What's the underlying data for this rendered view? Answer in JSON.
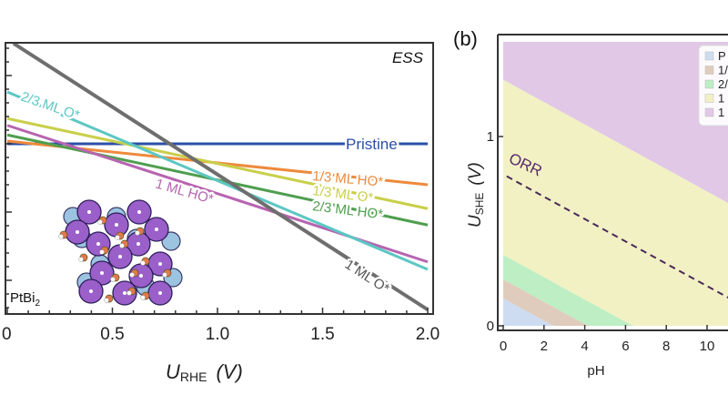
{
  "chart_data": [
    {
      "type": "line",
      "panel_label": "",
      "title": "",
      "annotation_top_right": "ESS",
      "material_label": "PtBi",
      "material_subscript": "2",
      "xlabel_main": "U",
      "xlabel_sub": "RHE",
      "xlabel_unit": "(V)",
      "xlim": [
        0,
        2.0
      ],
      "ylim": [
        -2.5,
        1.5
      ],
      "x_ticks": [
        "0",
        "0.5",
        "1.0",
        "1.5",
        "2.0"
      ],
      "x_tick_values": [
        0,
        0.5,
        1.0,
        1.5,
        2.0
      ],
      "y_ticks_note": "",
      "series": [
        {
          "name": "Pristine",
          "color": "#2b4fa8",
          "points": [
            [
              0,
              0
            ],
            [
              2.0,
              0
            ]
          ]
        },
        {
          "name": "1/3 ML HO*",
          "color": "#ee8a3c",
          "points": [
            [
              0,
              0.04
            ],
            [
              2.0,
              -0.6
            ]
          ]
        },
        {
          "name": "1/3 ML O*",
          "color": "#c9cf4a",
          "points": [
            [
              0,
              0.37
            ],
            [
              2.0,
              -0.95
            ]
          ]
        },
        {
          "name": "2/3 ML HO*",
          "color": "#4f9e4f",
          "points": [
            [
              0,
              0.13
            ],
            [
              2.0,
              -1.19
            ]
          ]
        },
        {
          "name": "1 ML HO*",
          "color": "#b764b0",
          "points": [
            [
              0,
              0.27
            ],
            [
              2.0,
              -1.73
            ]
          ]
        },
        {
          "name": "2/3 ML O*",
          "color": "#5cc7c4",
          "points": [
            [
              0,
              0.76
            ],
            [
              2.0,
              -1.84
            ]
          ]
        },
        {
          "name": "1 ML O*",
          "color": "#6e6e6e",
          "points": [
            [
              0.03,
              1.47
            ],
            [
              2.0,
              -2.43
            ]
          ]
        }
      ]
    },
    {
      "type": "area",
      "panel_label": "(b)",
      "xlabel": "pH",
      "ylabel_main": "U",
      "ylabel_sub": "SHE",
      "ylabel_unit": "(V)",
      "xlim": [
        0,
        11
      ],
      "ylim": [
        0,
        1.5
      ],
      "x_ticks": [
        "0",
        "2",
        "4",
        "6",
        "8",
        "10"
      ],
      "x_tick_values": [
        0,
        2,
        4,
        6,
        8,
        10
      ],
      "y_ticks": [
        "0",
        "1"
      ],
      "y_tick_values": [
        0,
        1
      ],
      "boundary_slope_V_per_pH": -0.059,
      "boundaries_U_at_pH0": [
        0.145,
        0.245,
        0.375,
        1.3
      ],
      "regions": [
        {
          "legend_text": "P",
          "color": "#cddcf0"
        },
        {
          "legend_text": "1/",
          "color": "#e0ccbc"
        },
        {
          "legend_text": "2/",
          "color": "#bdeec4"
        },
        {
          "legend_text": "1",
          "color": "#f2f1c4"
        },
        {
          "legend_text": "1",
          "color": "#e0c8e6"
        }
      ],
      "orr_line": {
        "label": "ORR",
        "U_at_pH0": 0.8,
        "slope": -0.059,
        "color": "#4a2a5a"
      }
    }
  ]
}
